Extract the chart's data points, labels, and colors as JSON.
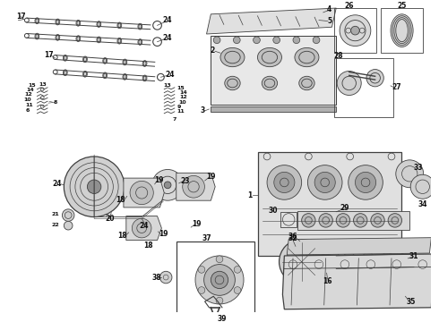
{
  "bg_color": "#ffffff",
  "line_color": "#404040",
  "label_color": "#111111",
  "fig_width": 4.9,
  "fig_height": 3.6,
  "dpi": 100
}
